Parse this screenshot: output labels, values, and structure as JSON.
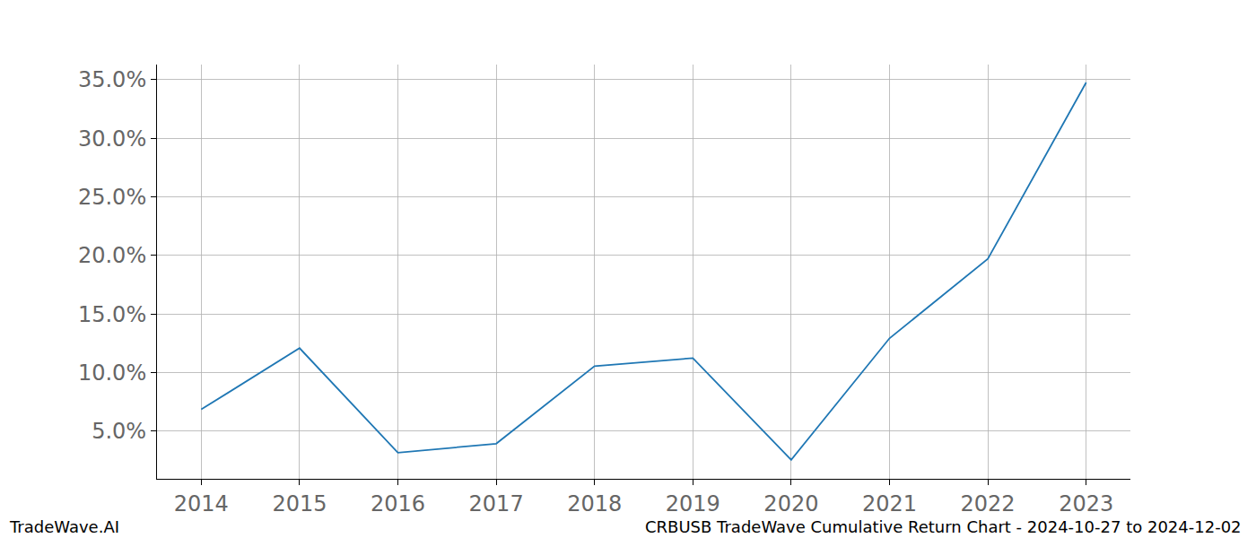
{
  "chart_data": {
    "type": "line",
    "x": [
      2014,
      2015,
      2016,
      2017,
      2018,
      2019,
      2020,
      2021,
      2022,
      2023
    ],
    "values": [
      6.85,
      12.08,
      3.15,
      3.92,
      10.54,
      11.23,
      2.54,
      12.92,
      19.7,
      34.77
    ],
    "color": "#1f77b4",
    "xlim": [
      2013.55,
      2023.45
    ],
    "xticks": [
      2014,
      2015,
      2016,
      2017,
      2018,
      2019,
      2020,
      2021,
      2022,
      2023
    ],
    "ylim": [
      0.92,
      36.3
    ],
    "yticks": [
      {
        "value": 5,
        "label": "5.0%"
      },
      {
        "value": 10,
        "label": "10.0%"
      },
      {
        "value": 15,
        "label": "15.0%"
      },
      {
        "value": 20,
        "label": "20.0%"
      },
      {
        "value": 25,
        "label": "25.0%"
      },
      {
        "value": 30,
        "label": "30.0%"
      },
      {
        "value": 35,
        "label": "35.0%"
      }
    ],
    "grid": true,
    "annotations": [
      "TradeWave.AI",
      "CRBUSB TradeWave Cumulative Return Chart - 2024-10-27 to 2024-12-02"
    ]
  }
}
